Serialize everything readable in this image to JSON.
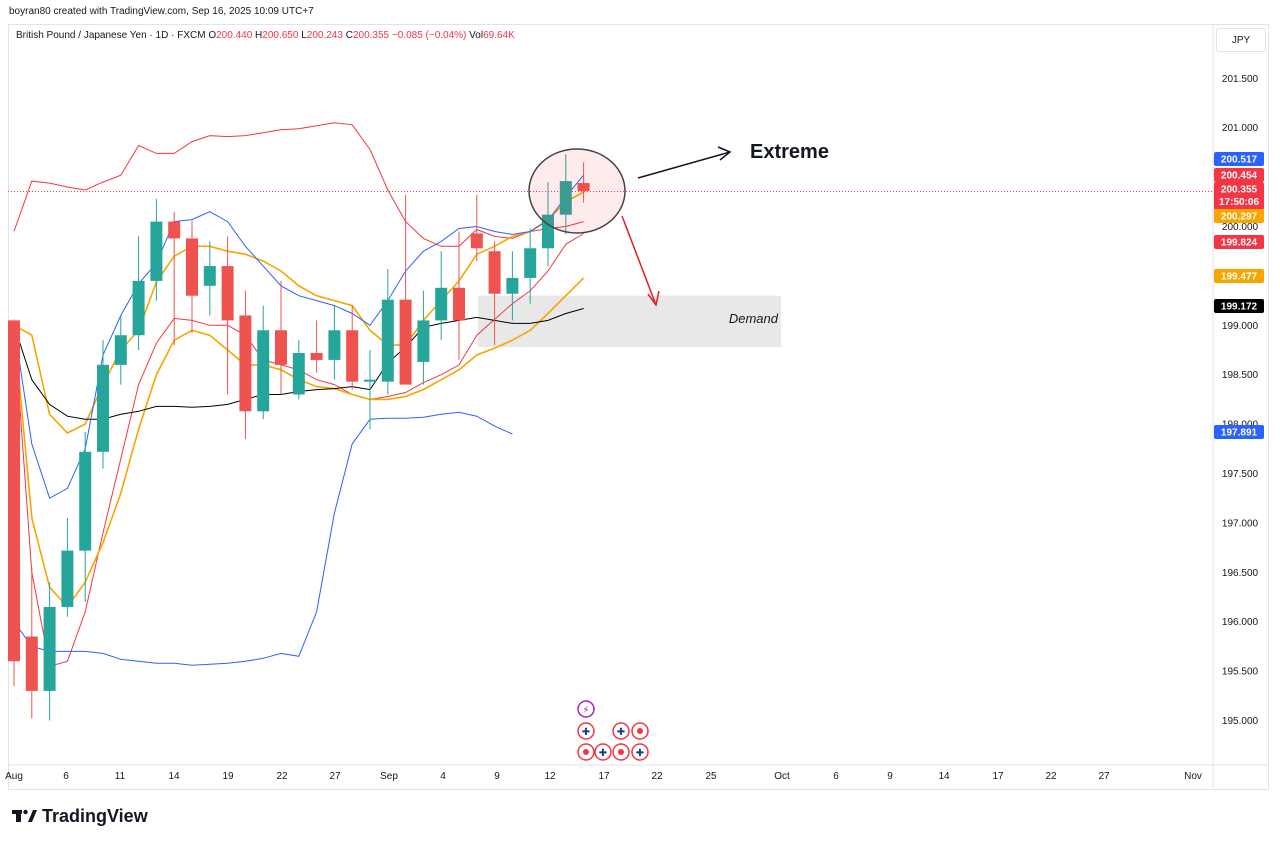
{
  "header": {
    "credit": "boyran80 created with TradingView.com, Sep 16, 2025 10:09 UTC+7"
  },
  "legend": {
    "symbol": "British Pound / Japanese Yen · 1D · FXCM",
    "open_label": "O",
    "open": "200.440",
    "high_label": "H",
    "high": "200.650",
    "low_label": "L",
    "low": "200.243",
    "close_label": "C",
    "close": "200.355",
    "change": "−0.085 (−0.04%)",
    "vol_label": "Vol",
    "vol": "69.64K"
  },
  "currency_button": "JPY",
  "footer": {
    "brand": "TradingView"
  },
  "annotations": {
    "extreme": "Extreme",
    "demand": "Demand"
  },
  "price_tags": [
    {
      "value": "200.517",
      "color": "#2962ff"
    },
    {
      "value": "200.454",
      "color": "#f23645"
    },
    {
      "value": "200.355",
      "sub": "17:50:06",
      "color": "#f23645"
    },
    {
      "value": "200.297",
      "color": "#f7a600"
    },
    {
      "value": "199.824",
      "color": "#f23645"
    },
    {
      "value": "199.477",
      "color": "#f7a600"
    },
    {
      "value": "199.172",
      "color": "#000000"
    },
    {
      "value": "197.891",
      "color": "#2962ff"
    }
  ],
  "chart_data": {
    "type": "line",
    "candles": [
      {
        "o": 199.05,
        "h": 199.06,
        "l": 195.35,
        "c": 195.6
      },
      {
        "o": 195.85,
        "h": 196.55,
        "l": 195.02,
        "c": 195.3
      },
      {
        "o": 195.3,
        "h": 196.4,
        "l": 195.0,
        "c": 196.15
      },
      {
        "o": 196.15,
        "h": 197.05,
        "l": 196.05,
        "c": 196.72
      },
      {
        "o": 196.72,
        "h": 197.92,
        "l": 196.2,
        "c": 197.72
      },
      {
        "o": 197.72,
        "h": 198.85,
        "l": 197.55,
        "c": 198.6
      },
      {
        "o": 198.6,
        "h": 199.1,
        "l": 198.4,
        "c": 198.9
      },
      {
        "o": 198.9,
        "h": 199.9,
        "l": 198.75,
        "c": 199.45
      },
      {
        "o": 199.45,
        "h": 200.28,
        "l": 199.25,
        "c": 200.05
      },
      {
        "o": 200.05,
        "h": 200.15,
        "l": 198.8,
        "c": 199.88
      },
      {
        "o": 199.88,
        "h": 200.06,
        "l": 198.92,
        "c": 199.3
      },
      {
        "o": 199.4,
        "h": 199.85,
        "l": 199.1,
        "c": 199.6
      },
      {
        "o": 199.6,
        "h": 199.9,
        "l": 198.3,
        "c": 199.05
      },
      {
        "o": 199.1,
        "h": 199.35,
        "l": 197.85,
        "c": 198.13
      },
      {
        "o": 198.13,
        "h": 199.2,
        "l": 198.05,
        "c": 198.95
      },
      {
        "o": 198.95,
        "h": 199.45,
        "l": 198.3,
        "c": 198.6
      },
      {
        "o": 198.3,
        "h": 198.85,
        "l": 198.25,
        "c": 198.72
      },
      {
        "o": 198.72,
        "h": 199.05,
        "l": 198.52,
        "c": 198.65
      },
      {
        "o": 198.65,
        "h": 199.2,
        "l": 198.45,
        "c": 198.95
      },
      {
        "o": 198.95,
        "h": 199.2,
        "l": 198.35,
        "c": 198.43
      },
      {
        "o": 198.43,
        "h": 198.75,
        "l": 197.95,
        "c": 198.45
      },
      {
        "o": 198.43,
        "h": 199.57,
        "l": 198.3,
        "c": 199.26
      },
      {
        "o": 199.26,
        "h": 200.32,
        "l": 198.45,
        "c": 198.4
      },
      {
        "o": 198.63,
        "h": 199.35,
        "l": 198.4,
        "c": 199.05
      },
      {
        "o": 199.05,
        "h": 199.75,
        "l": 198.85,
        "c": 199.38
      },
      {
        "o": 199.38,
        "h": 199.95,
        "l": 198.65,
        "c": 199.05
      },
      {
        "o": 199.93,
        "h": 200.32,
        "l": 199.65,
        "c": 199.78
      },
      {
        "o": 199.75,
        "h": 199.85,
        "l": 198.8,
        "c": 199.32
      },
      {
        "o": 199.32,
        "h": 199.75,
        "l": 199.05,
        "c": 199.48
      },
      {
        "o": 199.48,
        "h": 199.98,
        "l": 199.22,
        "c": 199.78
      },
      {
        "o": 199.78,
        "h": 200.45,
        "l": 199.6,
        "c": 200.12
      },
      {
        "o": 200.12,
        "h": 200.73,
        "l": 199.92,
        "c": 200.46
      },
      {
        "o": 200.44,
        "h": 200.65,
        "l": 200.24,
        "c": 200.36
      }
    ],
    "overlays": [
      {
        "color": "#f23645",
        "values": [
          199.95,
          200.46,
          200.44,
          200.4,
          200.37,
          200.45,
          200.52,
          200.82,
          200.74,
          200.74,
          200.86,
          200.92,
          200.91,
          200.92,
          200.95,
          200.98,
          200.99,
          201.02,
          201.05,
          201.03,
          200.78,
          200.37,
          200.05,
          199.88,
          199.8,
          199.8,
          199.97,
          199.9,
          199.88,
          199.95,
          199.98,
          200.0,
          200.05
        ]
      },
      {
        "color": "#f23645",
        "values": [
          199.0,
          196.5,
          195.55,
          195.6,
          196.1,
          196.9,
          197.65,
          198.4,
          198.82,
          199.07,
          199.05,
          199.0,
          199.0,
          198.9,
          198.65,
          198.6,
          198.55,
          198.45,
          198.4,
          198.3,
          198.25,
          198.28,
          198.32,
          198.42,
          198.5,
          198.6,
          198.9,
          199.06,
          199.22,
          199.35,
          199.55,
          199.82,
          199.93
        ]
      },
      {
        "color": "#f7a600",
        "values": [
          199.0,
          198.9,
          198.1,
          197.91,
          198.0,
          198.4,
          198.75,
          198.95,
          199.44,
          199.7,
          199.8,
          199.8,
          199.75,
          199.72,
          199.65,
          199.55,
          199.4,
          199.3,
          199.25,
          199.2,
          198.95,
          198.8,
          198.8,
          199.05,
          199.25,
          199.45,
          199.72,
          199.8,
          199.9,
          199.95,
          200.07,
          200.25,
          200.35
        ]
      },
      {
        "color": "#f7a600",
        "values": [
          199.0,
          197.05,
          196.35,
          196.15,
          196.4,
          196.8,
          197.3,
          197.95,
          198.5,
          198.85,
          198.95,
          198.9,
          198.75,
          198.6,
          198.6,
          198.55,
          198.45,
          198.38,
          198.36,
          198.3,
          198.25,
          198.25,
          198.28,
          198.35,
          198.45,
          198.55,
          198.7,
          198.77,
          198.85,
          198.95,
          199.12,
          199.3,
          199.48
        ]
      },
      {
        "color": "#000000",
        "values": [
          199.0,
          198.45,
          198.2,
          198.08,
          198.05,
          198.05,
          198.1,
          198.13,
          198.18,
          198.18,
          198.17,
          198.18,
          198.2,
          198.25,
          198.3,
          198.3,
          198.33,
          198.35,
          198.36,
          198.38,
          198.35,
          198.62,
          198.78,
          198.98,
          199.02,
          199.05,
          199.08,
          199.05,
          199.02,
          199.02,
          199.05,
          199.12,
          199.17
        ]
      },
      {
        "color": "#2962ff",
        "values": [
          199.0,
          197.8,
          197.25,
          197.35,
          197.75,
          198.7,
          199.1,
          199.42,
          199.63,
          200.05,
          200.07,
          200.15,
          200.05,
          199.8,
          199.6,
          199.4,
          199.3,
          199.25,
          199.2,
          199.12,
          199.0,
          199.25,
          199.55,
          199.75,
          199.85,
          199.98,
          200.0,
          199.95,
          199.92,
          199.95,
          200.06,
          200.3,
          200.52
        ]
      },
      {
        "color": "#2962ff",
        "values": [
          196.0,
          195.75,
          195.7,
          195.7,
          195.7,
          195.68,
          195.62,
          195.6,
          195.58,
          195.58,
          195.56,
          195.57,
          195.58,
          195.6,
          195.63,
          195.68,
          195.65,
          196.1,
          197.1,
          197.8,
          198.05,
          198.06,
          198.06,
          198.07,
          198.1,
          198.12,
          198.08,
          197.98,
          197.9
        ]
      }
    ],
    "yrange": [
      194.55,
      202.05
    ],
    "yticks": [
      "201.500",
      "201.000",
      "200.000",
      "199.000",
      "198.500",
      "198.000",
      "197.500",
      "197.000",
      "196.500",
      "196.000",
      "195.500",
      "195.000"
    ],
    "xticks": [
      "Aug",
      "6",
      "11",
      "14",
      "19",
      "22",
      "27",
      "Sep",
      "4",
      "9",
      "12",
      "17",
      "22",
      "25",
      "Oct",
      "6",
      "9",
      "14",
      "17",
      "22",
      "27",
      "Nov"
    ],
    "current_price": 200.355,
    "demand_zone": [
      198.78,
      199.3
    ],
    "grid": false
  }
}
